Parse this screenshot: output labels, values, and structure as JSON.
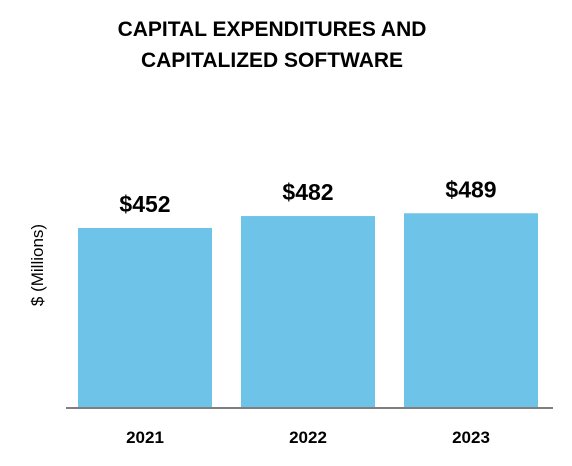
{
  "chart_data": {
    "type": "bar",
    "title_lines": [
      "CAPITAL EXPENDITURES AND",
      "CAPITALIZED SOFTWARE"
    ],
    "ylabel": "$ (Millions)",
    "xlabel": "",
    "categories": [
      "2021",
      "2022",
      "2023"
    ],
    "values": [
      452,
      482,
      489
    ],
    "data_labels": [
      "$452",
      "$482",
      "$489"
    ],
    "bar_color": "#6EC3E8",
    "axis_color": "#7F7F7F",
    "ylim": [
      0,
      550
    ],
    "grid": false,
    "legend": "none"
  }
}
